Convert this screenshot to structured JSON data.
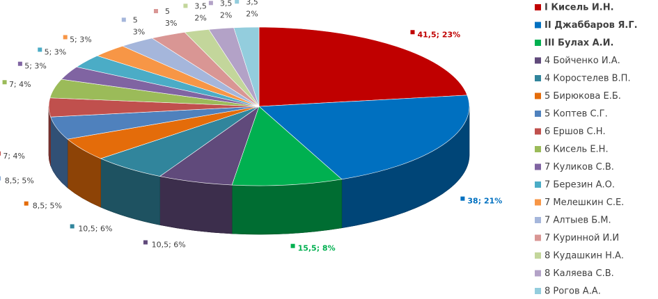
{
  "chart_data": {
    "type": "pie",
    "title": "",
    "slices": [
      {
        "name": "I Кисель И.Н.",
        "value": 41.5,
        "label": "41,5; 23%",
        "color": "#C00000",
        "highlight": true
      },
      {
        "name": "II Джаббаров Я.Г.",
        "value": 38,
        "label": "38; 21%",
        "color": "#0070C0",
        "highlight": true
      },
      {
        "name": "III Булах А.И.",
        "value": 15.5,
        "label": "15,5; 8%",
        "color": "#00B050",
        "highlight": true
      },
      {
        "name": "4 Бойченко И.А.",
        "value": 10.5,
        "label": "10,5; 6%",
        "color": "#604A7B",
        "highlight": false
      },
      {
        "name": "4 Коростелев В.П.",
        "value": 10.5,
        "label": "10,5; 6%",
        "color": "#31859C",
        "highlight": false
      },
      {
        "name": "5 Бирюкова Е.Б.",
        "value": 8.5,
        "label": "8,5; 5%",
        "color": "#E46C0A",
        "highlight": false
      },
      {
        "name": "5 Коптев С.Г.",
        "value": 8.5,
        "label": "8,5; 5%",
        "color": "#4F81BD",
        "highlight": false
      },
      {
        "name": "6 Ершов С.Н.",
        "value": 7,
        "label": "7; 4%",
        "color": "#C0504D",
        "highlight": false
      },
      {
        "name": "6 Кисель Е.Н.",
        "value": 7,
        "label": "7; 4%",
        "color": "#9BBB59",
        "highlight": false
      },
      {
        "name": "7 Куликов С.В.",
        "value": 5,
        "label": "5; 3%",
        "color": "#8064A2",
        "highlight": false
      },
      {
        "name": "7 Березин А.О.",
        "value": 5,
        "label": "5; 3%",
        "color": "#4BACC6",
        "highlight": false
      },
      {
        "name": "7 Мелешкин С.Е.",
        "value": 5,
        "label": "5; 3%",
        "color": "#F79646",
        "highlight": false
      },
      {
        "name": "7 Алтыев Б.М.",
        "value": 5,
        "label_lines": [
          "5",
          "3%"
        ],
        "color": "#A5B6DB",
        "highlight": false
      },
      {
        "name": "7 Куринной И.И",
        "value": 5,
        "label_lines": [
          "5",
          "3%"
        ],
        "color": "#D99694",
        "highlight": false
      },
      {
        "name": "8 Кудашкин Н.А.",
        "value": 3.5,
        "label_lines": [
          "3,5",
          "2%"
        ],
        "color": "#C3D69B",
        "highlight": false
      },
      {
        "name": "8 Каляева С.В.",
        "value": 3.5,
        "label_lines": [
          "3,5",
          "2%"
        ],
        "color": "#B3A2C7",
        "highlight": false
      },
      {
        "name": "8 Рогов А.А.",
        "value": 3.5,
        "label_lines": [
          "3,5",
          "2%"
        ],
        "color": "#93CDDD",
        "highlight": false
      }
    ],
    "legend_position": "right",
    "style": "3d-pie"
  }
}
